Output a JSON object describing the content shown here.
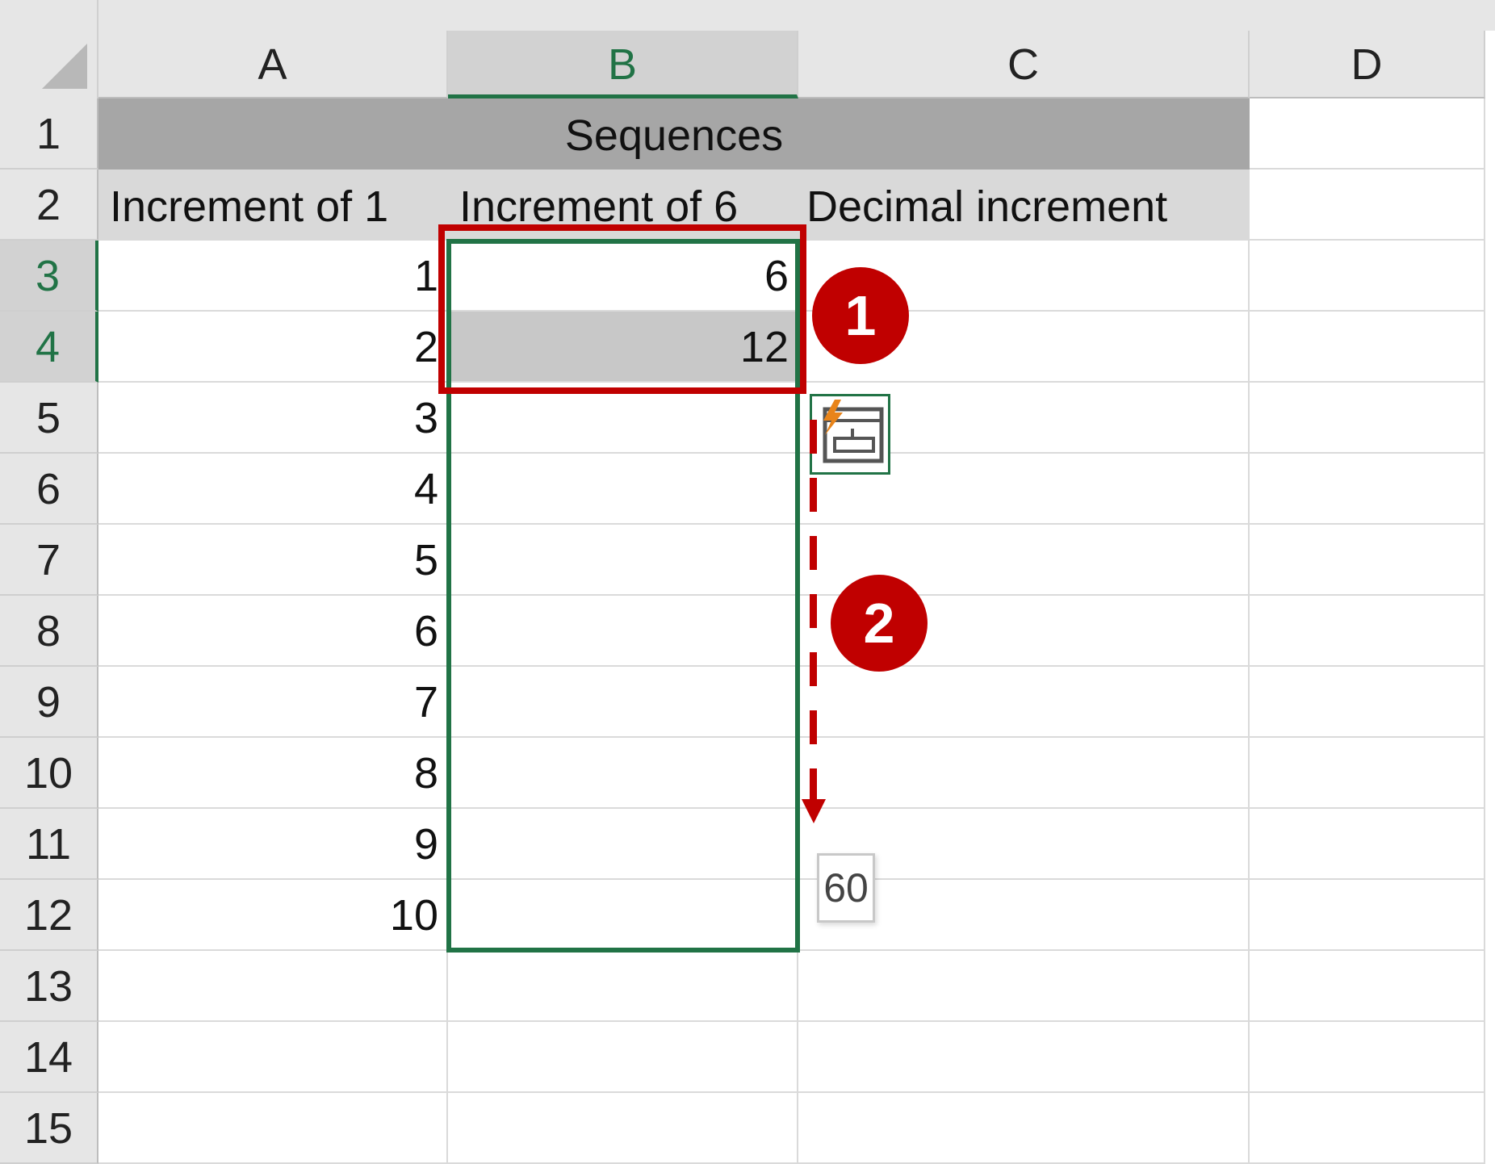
{
  "columns": [
    "A",
    "B",
    "C",
    "D"
  ],
  "selected_column": "B",
  "rows": [
    "1",
    "2",
    "3",
    "4",
    "5",
    "6",
    "7",
    "8",
    "9",
    "10",
    "11",
    "12",
    "13",
    "14",
    "15"
  ],
  "selected_rows": [
    "3",
    "4"
  ],
  "title": "Sequences",
  "headers": [
    "Increment of 1",
    "Increment of 6",
    "Decimal increment"
  ],
  "col_a_values": [
    "1",
    "2",
    "3",
    "4",
    "5",
    "6",
    "7",
    "8",
    "9",
    "10"
  ],
  "col_b_values": [
    "6",
    "12"
  ],
  "annotations": {
    "step1": "1",
    "step2": "2"
  },
  "fill_tooltip": "60",
  "quick_analysis_icon": "flash-fill-options-icon",
  "colors": {
    "selection": "#217346",
    "annotation": "#c00000",
    "title_fill": "#a6a6a6",
    "header_fill": "#d9d9d9"
  }
}
